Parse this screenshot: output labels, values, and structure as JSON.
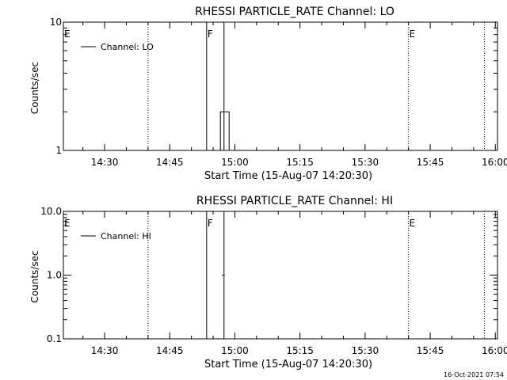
{
  "footer_timestamp": "16-Oct-2021 07:54",
  "chart_data": [
    {
      "type": "line",
      "title": "RHESSI PARTICLE_RATE Channel: LO",
      "xlabel": "Start Time (15-Aug-07 14:20:30)",
      "ylabel": "Counts/sec",
      "yscale": "log",
      "ylim": [
        1,
        10
      ],
      "xlim": [
        "14:20:30",
        "16:00:30"
      ],
      "x_ticks": [
        "14:30",
        "14:45",
        "15:00",
        "15:15",
        "15:30",
        "15:45",
        "16:00"
      ],
      "y_ticks": [
        "1",
        "10"
      ],
      "grid": false,
      "legend_position": "top-left",
      "series": [
        {
          "name": "Channel: LO",
          "x": [
            "14:56:40",
            "14:56:40",
            "14:58:40",
            "14:58:40"
          ],
          "y": [
            1,
            2,
            2,
            1
          ]
        }
      ],
      "markers": {
        "dotted": [
          "14:40:00",
          "15:40:00",
          "15:57:30"
        ],
        "solid": [
          "14:53:30",
          "14:57:30"
        ]
      },
      "annotations": [
        {
          "text": "E",
          "x": "14:20:30"
        },
        {
          "text": "F",
          "x": "14:53:30"
        },
        {
          "text": "E",
          "x": "15:40:00"
        }
      ]
    },
    {
      "type": "line",
      "title": "RHESSI PARTICLE_RATE Channel: HI",
      "xlabel": "Start Time (15-Aug-07 14:20:30)",
      "ylabel": "Counts/sec",
      "yscale": "log",
      "ylim": [
        0.1,
        10
      ],
      "xlim": [
        "14:20:30",
        "16:00:30"
      ],
      "x_ticks": [
        "14:30",
        "14:45",
        "15:00",
        "15:15",
        "15:30",
        "15:45",
        "16:00"
      ],
      "y_ticks": [
        "0.1",
        "1.0",
        "10.0"
      ],
      "grid": false,
      "legend_position": "top-left",
      "series": [
        {
          "name": "Channel: HI",
          "x": [
            "14:57:00",
            "14:57:40"
          ],
          "y": [
            1,
            1
          ]
        }
      ],
      "markers": {
        "dotted": [
          "14:40:00",
          "15:40:00",
          "15:57:30"
        ],
        "solid": [
          "14:53:30",
          "14:57:30"
        ]
      },
      "annotations": [
        {
          "text": "E",
          "x": "14:20:30"
        },
        {
          "text": "F",
          "x": "14:53:30"
        },
        {
          "text": "E",
          "x": "15:40:00"
        }
      ]
    }
  ]
}
